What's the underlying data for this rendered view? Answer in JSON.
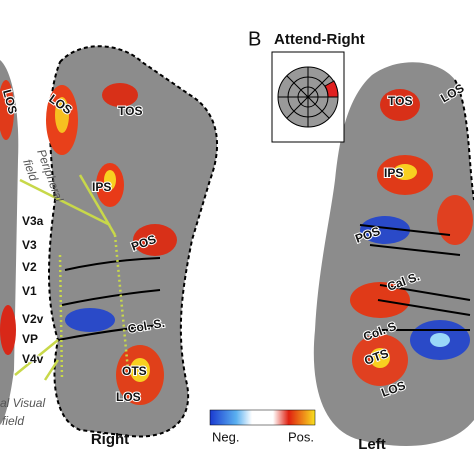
{
  "panel_label": "B",
  "title": "Attend-Right",
  "right_map": {
    "label": "Right",
    "regions": [
      "TOS",
      "LOS",
      "IPS",
      "V3a",
      "V3",
      "V2",
      "V1",
      "V2v",
      "VP",
      "V4v",
      "POS",
      "Col. S.",
      "OTS",
      "LOS"
    ]
  },
  "left_map": {
    "label": "Left",
    "regions": [
      "TOS",
      "LOS",
      "IPS",
      "POS",
      "Cal S.",
      "Col. S",
      "OTS",
      "LOS"
    ]
  },
  "cut_map": {
    "regions": [
      "LOS"
    ]
  },
  "annotations": {
    "peripheral": [
      "Peripheral",
      "field"
    ],
    "central": [
      "al Visual",
      "field"
    ]
  },
  "colorbar": {
    "neg": "Neg.",
    "pos": "Pos."
  }
}
